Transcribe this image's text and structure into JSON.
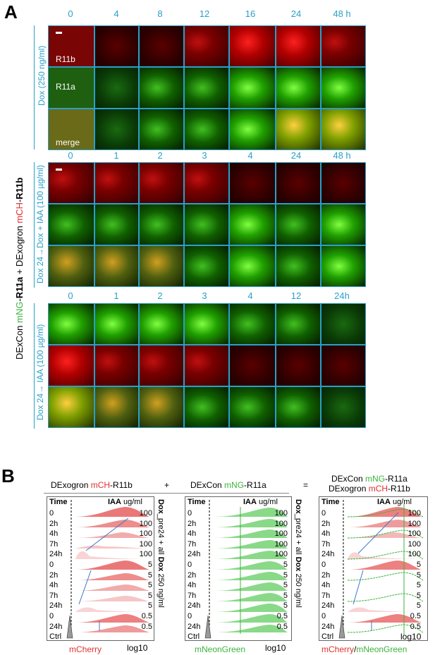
{
  "panel_a": {
    "letter": "A",
    "main_label": {
      "p1": "DExCon ",
      "p2": "mNG",
      "p3": "-",
      "p4": "R11a",
      "p5": " + DExogron ",
      "p6": "mCH",
      "p7": "-",
      "p8": "R11b"
    },
    "block1": {
      "times": [
        "0",
        "4",
        "8",
        "12",
        "16",
        "24",
        "48 h"
      ],
      "side_label": "Dox (250 ng/ml)",
      "row_labels": [
        "R11b",
        "R11a",
        "merge"
      ]
    },
    "block2": {
      "times": [
        "0",
        "1",
        "2",
        "3",
        "4",
        "24",
        "48 h"
      ],
      "side_label": "Dox 24→Dox + IAA (100 µg/ml)"
    },
    "block3": {
      "times": [
        "0",
        "1",
        "2",
        "3",
        "4",
        "12",
        "24h"
      ],
      "side_label": "Dox 24→ IAA (100 µg/ml)"
    }
  },
  "panel_b": {
    "letter": "B",
    "header": {
      "left_1": "DExogron ",
      "left_2": "mCH",
      "left_3": "-R11b",
      "plus": "+",
      "mid_1": "DExCon ",
      "mid_2": "mNG",
      "mid_3": "-R11a",
      "eq": "=",
      "right1_1": "DExCon ",
      "right1_2": "mNG",
      "right1_3": "-R11a",
      "right2_1": "DExogron ",
      "right2_2": "mCH",
      "right2_3": "-R11b"
    },
    "col_time": "Time",
    "col_iaa": "IAA",
    "col_iaa_unit": " ug/ml",
    "times": [
      "0",
      "2h",
      "4h",
      "7h",
      "24h",
      "0",
      "2h",
      "4h",
      "7h",
      "24h",
      "0",
      "24h",
      "Ctrl"
    ],
    "iaa": [
      "100",
      "100",
      "100",
      "100",
      "100",
      "5",
      "5",
      "5",
      "5",
      "5",
      "0.5",
      "0.5",
      ""
    ],
    "side_label_1": "Dox",
    "side_label_2": "_pre24 + all ",
    "side_label_3": "Dox",
    "side_label_4": " 250 ng/ml",
    "xaxis_scale": "log10",
    "xlabel_1": "mCherry",
    "xlabel_2": "mNeonGreen",
    "xlabel_3a": "mCherry",
    "xlabel_3b": "/",
    "xlabel_3c": "mNeonGreen",
    "colors": {
      "red": "#e03030",
      "green": "#3cb43c",
      "cyan": "#2aa0c8",
      "arrow": "#3c78c8"
    }
  }
}
